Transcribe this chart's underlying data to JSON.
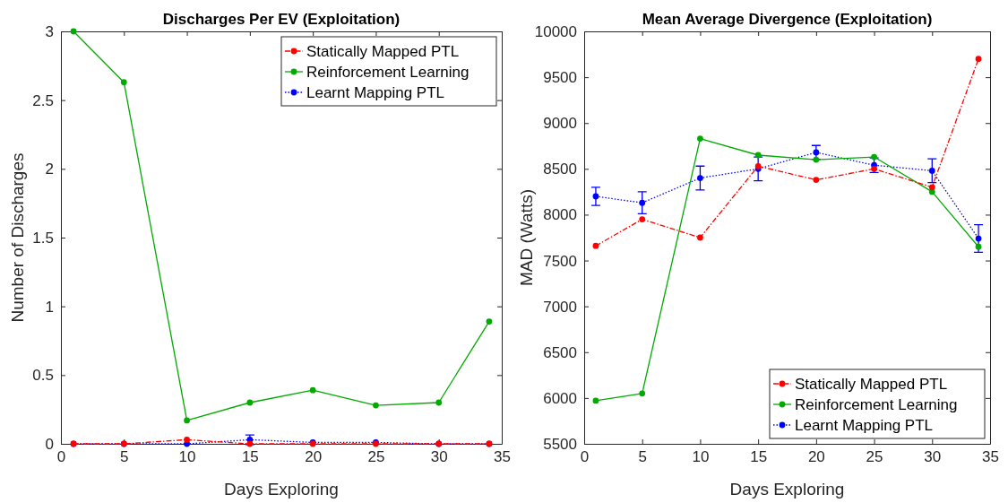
{
  "chart_data": [
    {
      "type": "line",
      "title": "Discharges Per EV (Exploitation)",
      "xlabel": "Days Exploring",
      "ylabel": "Number of Discharges",
      "x": [
        1,
        5,
        10,
        15,
        20,
        25,
        30,
        34
      ],
      "xlim": [
        0,
        35
      ],
      "xticks": [
        0,
        5,
        10,
        15,
        20,
        25,
        30,
        35
      ],
      "ylim": [
        0,
        3
      ],
      "yticks": [
        0,
        0.5,
        1,
        1.5,
        2,
        2.5,
        3
      ],
      "grid": false,
      "legend": "top right",
      "marker": "circle",
      "series": [
        {
          "name": "Statically Mapped PTL",
          "color": "#ff0000",
          "line_style": "dashed",
          "values": [
            0,
            0,
            0.03,
            0,
            0,
            0,
            0,
            0
          ]
        },
        {
          "name": "Reinforcement Learning",
          "color": "#00aa00",
          "line_style": "solid",
          "values": [
            3,
            2.63,
            0.17,
            0.3,
            0.39,
            0.28,
            0.3,
            0.89
          ]
        },
        {
          "name": "Learnt Mapping PTL",
          "color": "#0000ff",
          "line_style": "dotted",
          "values": [
            0,
            0,
            0,
            0.03,
            0.01,
            0.01,
            0,
            0
          ],
          "errors": [
            null,
            null,
            null,
            0.035,
            null,
            null,
            null,
            null
          ]
        }
      ]
    },
    {
      "type": "line",
      "title": "Mean Average Divergence (Exploitation)",
      "xlabel": "Days Exploring",
      "ylabel": "MAD (Watts)",
      "x": [
        1,
        5,
        10,
        15,
        20,
        25,
        30,
        34
      ],
      "xlim": [
        0,
        35
      ],
      "xticks": [
        0,
        5,
        10,
        15,
        20,
        25,
        30,
        35
      ],
      "ylim": [
        5500,
        10000
      ],
      "yticks": [
        5500,
        6000,
        6500,
        7000,
        7500,
        8000,
        8500,
        9000,
        9500,
        10000
      ],
      "grid": false,
      "legend": "bottom right",
      "marker": "circle",
      "series": [
        {
          "name": "Statically Mapped PTL",
          "color": "#ff0000",
          "line_style": "dashed",
          "values": [
            7660,
            7950,
            7750,
            8530,
            8380,
            8500,
            8300,
            9700
          ]
        },
        {
          "name": "Reinforcement Learning",
          "color": "#00aa00",
          "line_style": "solid",
          "values": [
            5970,
            6050,
            8830,
            8650,
            8600,
            8630,
            8250,
            7650
          ]
        },
        {
          "name": "Learnt Mapping PTL",
          "color": "#0000ff",
          "line_style": "dotted",
          "values": [
            8200,
            8130,
            8400,
            8500,
            8680,
            8540,
            8480,
            7740
          ],
          "errors": [
            100,
            120,
            130,
            130,
            75,
            80,
            130,
            150
          ]
        }
      ]
    }
  ]
}
